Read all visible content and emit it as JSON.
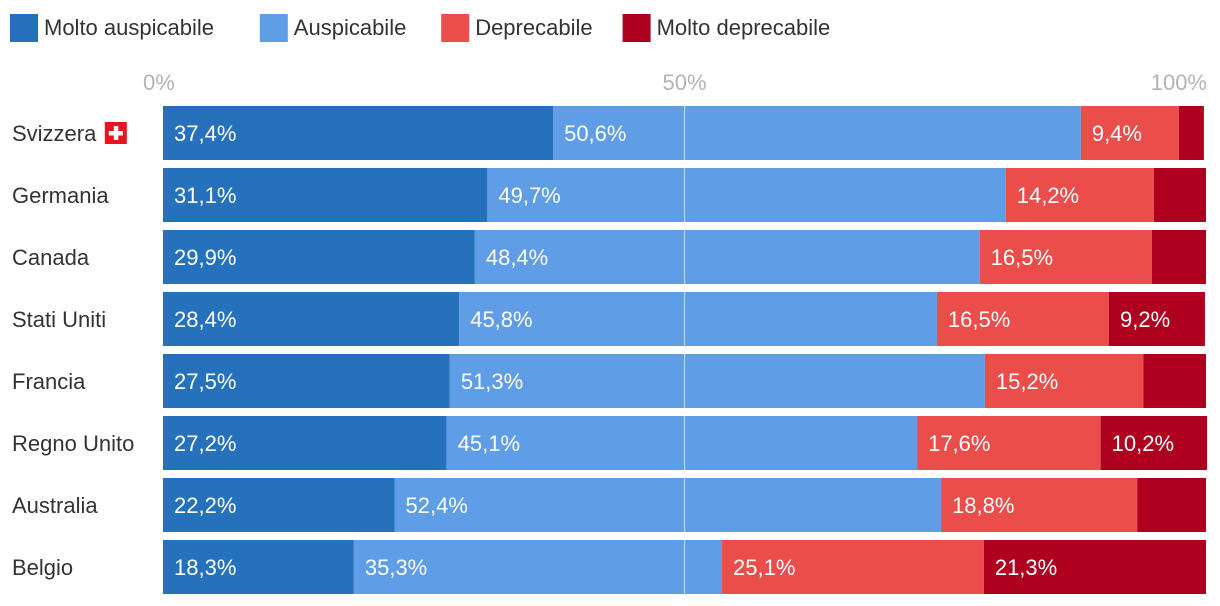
{
  "chart_data": {
    "type": "bar",
    "orientation": "horizontal",
    "stacked": true,
    "title": "",
    "xlabel": "",
    "ylabel": "",
    "xlim": [
      0,
      100
    ],
    "x_ticks": [
      "0%",
      "50%",
      "100%"
    ],
    "grid": true,
    "legend_position": "top-left",
    "categories": [
      "Svizzera",
      "Germania",
      "Canada",
      "Stati Uniti",
      "Francia",
      "Regno Unito",
      "Australia",
      "Belgio"
    ],
    "category_flags": [
      "swiss-flag-icon",
      "",
      "",
      "",
      "",
      "",
      "",
      ""
    ],
    "series": [
      {
        "name": "Molto auspicabile",
        "color": "#2571bc",
        "values": [
          37.4,
          31.1,
          29.9,
          28.4,
          27.5,
          27.2,
          22.2,
          18.3
        ],
        "labels": [
          "37,4%",
          "31,1%",
          "29,9%",
          "28,4%",
          "27,5%",
          "27,2%",
          "22,2%",
          "18,3%"
        ]
      },
      {
        "name": "Auspicabile",
        "color": "#5f9de6",
        "values": [
          50.6,
          49.7,
          48.4,
          45.8,
          51.3,
          45.1,
          52.4,
          35.3
        ],
        "labels": [
          "50,6%",
          "49,7%",
          "48,4%",
          "45,8%",
          "51,3%",
          "45,1%",
          "52,4%",
          "35,3%"
        ]
      },
      {
        "name": "Deprecabile",
        "color": "#eb4d4b",
        "values": [
          9.4,
          14.2,
          16.5,
          16.5,
          15.2,
          17.6,
          18.8,
          25.1
        ],
        "labels": [
          "9,4%",
          "14,2%",
          "16,5%",
          "16,5%",
          "15,2%",
          "17,6%",
          "18,8%",
          "25,1%"
        ]
      },
      {
        "name": "Molto deprecabile",
        "color": "#b00020",
        "values": [
          2.4,
          5.0,
          5.2,
          9.2,
          6.0,
          10.2,
          6.6,
          21.3
        ],
        "labels": [
          "",
          "",
          "",
          "9,2%",
          "",
          "10,2%",
          "",
          "21,3%"
        ]
      }
    ]
  }
}
